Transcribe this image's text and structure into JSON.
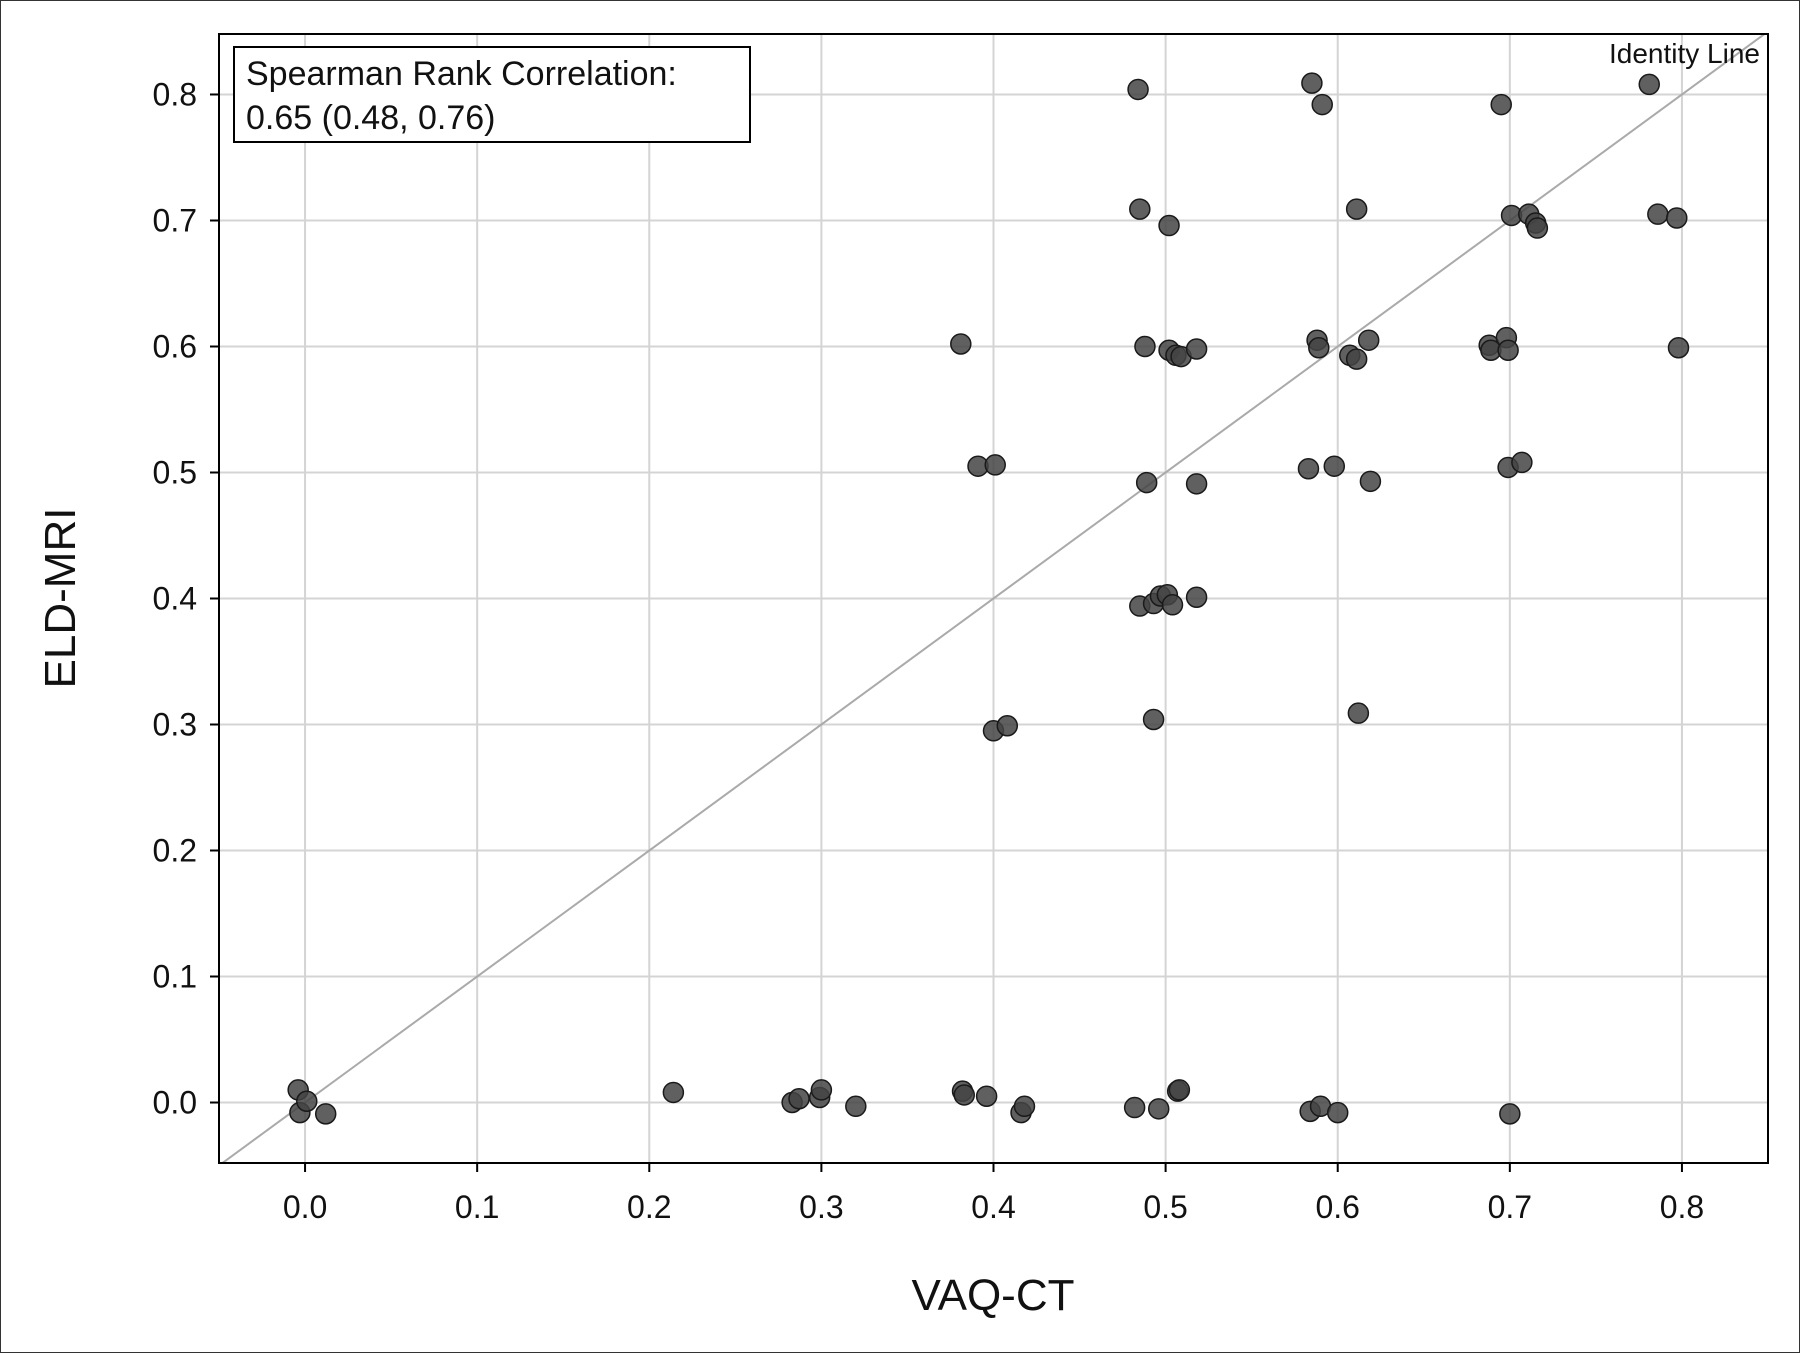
{
  "chart_data": {
    "type": "scatter",
    "xlabel": "VAQ-CT",
    "ylabel": "ELD-MRI",
    "xlim": [
      -0.05,
      0.85
    ],
    "ylim": [
      -0.048,
      0.848
    ],
    "xticks": [
      "0.0",
      "0.1",
      "0.2",
      "0.3",
      "0.4",
      "0.5",
      "0.6",
      "0.7",
      "0.8"
    ],
    "yticks": [
      "0.0",
      "0.1",
      "0.2",
      "0.3",
      "0.4",
      "0.5",
      "0.6",
      "0.7",
      "0.8"
    ],
    "grid": true,
    "annotation": {
      "line1": "Spearman Rank Correlation:",
      "line2": "0.65 (0.48, 0.76)",
      "placement": "top-left"
    },
    "reference_line": {
      "label": "Identity Line",
      "x": [
        -0.05,
        0.85
      ],
      "y": [
        -0.05,
        0.85
      ],
      "color": "#aaaaaa"
    },
    "marker_color": "#444444",
    "points": [
      [
        -0.004,
        0.01
      ],
      [
        -0.003,
        -0.008
      ],
      [
        0.001,
        0.001
      ],
      [
        0.012,
        -0.009
      ],
      [
        0.214,
        0.008
      ],
      [
        0.283,
        0.0
      ],
      [
        0.287,
        0.003
      ],
      [
        0.299,
        0.004
      ],
      [
        0.3,
        0.01
      ],
      [
        0.32,
        -0.003
      ],
      [
        0.382,
        0.009
      ],
      [
        0.383,
        0.006
      ],
      [
        0.396,
        0.005
      ],
      [
        0.416,
        -0.008
      ],
      [
        0.418,
        -0.003
      ],
      [
        0.482,
        -0.004
      ],
      [
        0.496,
        -0.005
      ],
      [
        0.507,
        0.009
      ],
      [
        0.508,
        0.01
      ],
      [
        0.584,
        -0.007
      ],
      [
        0.59,
        -0.003
      ],
      [
        0.6,
        -0.008
      ],
      [
        0.7,
        -0.009
      ],
      [
        0.4,
        0.295
      ],
      [
        0.408,
        0.299
      ],
      [
        0.493,
        0.304
      ],
      [
        0.612,
        0.309
      ],
      [
        0.485,
        0.394
      ],
      [
        0.493,
        0.396
      ],
      [
        0.497,
        0.402
      ],
      [
        0.501,
        0.403
      ],
      [
        0.504,
        0.395
      ],
      [
        0.518,
        0.401
      ],
      [
        0.391,
        0.505
      ],
      [
        0.401,
        0.506
      ],
      [
        0.489,
        0.492
      ],
      [
        0.518,
        0.491
      ],
      [
        0.583,
        0.503
      ],
      [
        0.598,
        0.505
      ],
      [
        0.619,
        0.493
      ],
      [
        0.699,
        0.504
      ],
      [
        0.707,
        0.508
      ],
      [
        0.381,
        0.602
      ],
      [
        0.488,
        0.6
      ],
      [
        0.502,
        0.597
      ],
      [
        0.506,
        0.593
      ],
      [
        0.509,
        0.592
      ],
      [
        0.518,
        0.598
      ],
      [
        0.588,
        0.605
      ],
      [
        0.589,
        0.599
      ],
      [
        0.607,
        0.593
      ],
      [
        0.611,
        0.59
      ],
      [
        0.618,
        0.605
      ],
      [
        0.688,
        0.601
      ],
      [
        0.689,
        0.597
      ],
      [
        0.698,
        0.607
      ],
      [
        0.699,
        0.597
      ],
      [
        0.798,
        0.599
      ],
      [
        0.485,
        0.709
      ],
      [
        0.502,
        0.696
      ],
      [
        0.611,
        0.709
      ],
      [
        0.701,
        0.704
      ],
      [
        0.711,
        0.705
      ],
      [
        0.715,
        0.698
      ],
      [
        0.716,
        0.694
      ],
      [
        0.786,
        0.705
      ],
      [
        0.797,
        0.702
      ],
      [
        0.484,
        0.804
      ],
      [
        0.585,
        0.809
      ],
      [
        0.591,
        0.792
      ],
      [
        0.695,
        0.792
      ],
      [
        0.781,
        0.808
      ]
    ]
  }
}
